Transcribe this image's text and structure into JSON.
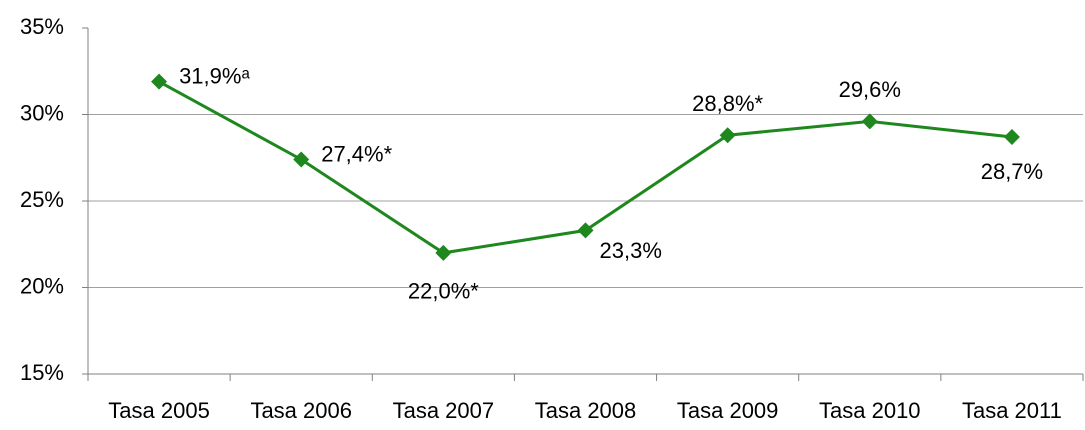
{
  "chart_data": {
    "type": "line",
    "categories": [
      "Tasa 2005",
      "Tasa 2006",
      "Tasa 2007",
      "Tasa 2008",
      "Tasa 2009",
      "Tasa 2010",
      "Tasa 2011"
    ],
    "series": [
      {
        "color": "#1e871e",
        "values": [
          31.9,
          27.4,
          22.0,
          23.3,
          28.8,
          29.6,
          28.7
        ],
        "value_labels": [
          "31,9%ᵃ",
          "27,4%*",
          "22,0%*",
          "23,3%",
          "28,8%*",
          "29,6%",
          "28,7%"
        ]
      }
    ],
    "ylim": [
      15,
      35
    ],
    "yticks": [
      {
        "value": 15,
        "label": "15%"
      },
      {
        "value": 20,
        "label": "20%"
      },
      {
        "value": 25,
        "label": "25%"
      },
      {
        "value": 30,
        "label": "30%"
      },
      {
        "value": 35,
        "label": "35%"
      }
    ],
    "grid": true
  }
}
